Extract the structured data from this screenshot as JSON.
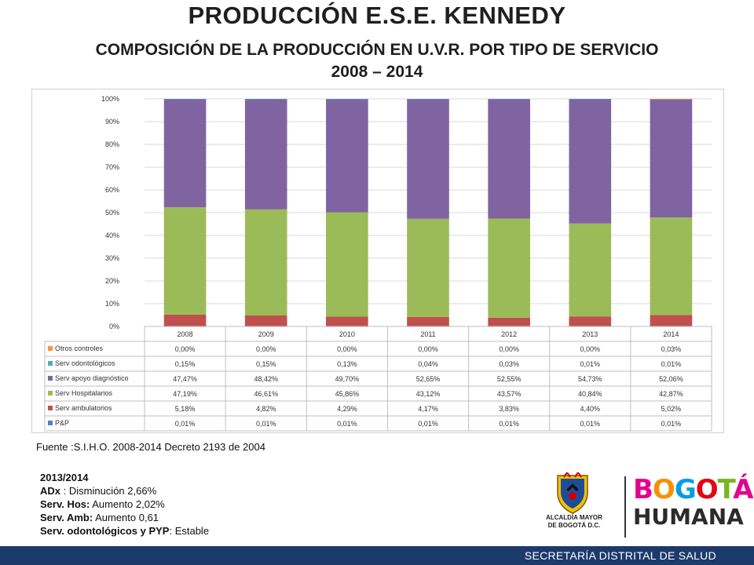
{
  "slide": {
    "title": "PRODUCCIÓN  E.S.E. KENNEDY",
    "subtitle_line1": "COMPOSICIÓN DE LA PRODUCCIÓN EN U.V.R. POR TIPO DE SERVICIO",
    "subtitle_line2": "2008 – 2014",
    "source": "Fuente :S.I.H.O. 2008-2014  Decreto 2193 de 2004",
    "notes": {
      "heading": "2013/2014",
      "items": [
        {
          "label": "ADx",
          "text": " : Disminución 2,66%"
        },
        {
          "label": "Serv. Hos:",
          "text": " Aumento 2,02%"
        },
        {
          "label": "Serv. Amb:",
          "text": " Aumento 0,61"
        },
        {
          "label": "Serv.  odontológicos y PYP",
          "text": ": Estable"
        }
      ]
    },
    "logo": {
      "alcaldia_line1": "ALCALDÍA MAYOR",
      "alcaldia_line2": "DE BOGOTÁ D.C.",
      "bogota": [
        "B",
        "O",
        "G",
        "O",
        "T",
        "Á"
      ],
      "bogota_colors": [
        "#e1058c",
        "#f39200",
        "#009fe3",
        "#e30613",
        "#7ab51d",
        "#e1058c"
      ],
      "humana": "HUMANA"
    },
    "footer": "SECRETARÍA DISTRITAL DE SALUD",
    "colors": {
      "footer_bg": "#1c3a6a"
    }
  },
  "chart_data": {
    "type": "bar",
    "stacked": "percent",
    "categories": [
      "2008",
      "2009",
      "2010",
      "2011",
      "2012",
      "2013",
      "2014"
    ],
    "y_ticks": [
      "0%",
      "10%",
      "20%",
      "30%",
      "40%",
      "50%",
      "60%",
      "70%",
      "80%",
      "90%",
      "100%"
    ],
    "ylim": [
      0,
      100
    ],
    "grid": true,
    "series": [
      {
        "name": "P&P",
        "color": "#4f81bd",
        "values": [
          0.01,
          0.01,
          0.01,
          0.01,
          0.01,
          0.01,
          0.01
        ],
        "labels": [
          "0,01%",
          "0,01%",
          "0,01%",
          "0,01%",
          "0,01%",
          "0,01%",
          "0,01%"
        ]
      },
      {
        "name": "Serv ambulatorios",
        "color": "#c0504d",
        "values": [
          5.18,
          4.82,
          4.29,
          4.17,
          3.83,
          4.4,
          5.02
        ],
        "labels": [
          "5,18%",
          "4,82%",
          "4,29%",
          "4,17%",
          "3,83%",
          "4,40%",
          "5,02%"
        ]
      },
      {
        "name": "Serv Hospitalarios",
        "color": "#9bbb59",
        "values": [
          47.19,
          46.61,
          45.86,
          43.12,
          43.57,
          40.84,
          42.87
        ],
        "labels": [
          "47,19%",
          "46,61%",
          "45,86%",
          "43,12%",
          "43,57%",
          "40,84%",
          "42,87%"
        ]
      },
      {
        "name": "Serv apoyo diagnóstico",
        "color": "#8064a2",
        "values": [
          47.47,
          48.42,
          49.7,
          52.65,
          52.55,
          54.73,
          52.06
        ],
        "labels": [
          "47,47%",
          "48,42%",
          "49,70%",
          "52,65%",
          "52,55%",
          "54,73%",
          "52,06%"
        ]
      },
      {
        "name": "Serv odontológicos",
        "color": "#4bacc6",
        "values": [
          0.15,
          0.15,
          0.13,
          0.04,
          0.03,
          0.01,
          0.01
        ],
        "labels": [
          "0,15%",
          "0,15%",
          "0,13%",
          "0,04%",
          "0,03%",
          "0,01%",
          "0,01%"
        ]
      },
      {
        "name": "Otros controles",
        "color": "#f79646",
        "values": [
          0.0,
          0.0,
          0.0,
          0.0,
          0.0,
          0.0,
          0.03
        ],
        "labels": [
          "0,00%",
          "0,00%",
          "0,00%",
          "0,00%",
          "0,00%",
          "0,00%",
          "0,03%"
        ]
      }
    ]
  }
}
